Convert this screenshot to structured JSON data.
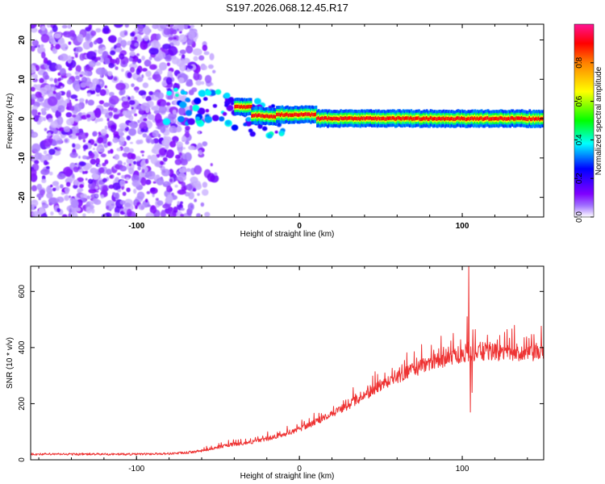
{
  "title": "S197.2026.068.12.45.R17",
  "chart_data": [
    {
      "type": "heatmap",
      "xlabel": "Height of straight line (km)",
      "ylabel": "Frequency (Hz)",
      "xlim": [
        -165,
        150
      ],
      "ylim": [
        -25,
        24
      ],
      "x_ticks": [
        -100,
        0,
        100
      ],
      "y_ticks": [
        20,
        10,
        0,
        -10,
        -20
      ],
      "colorbar": {
        "label": "Normalized spectral amplitude",
        "range": [
          0,
          1
        ],
        "ticks": [
          0.0,
          0.2,
          0.4,
          0.6,
          0.8
        ],
        "colors": [
          "#ffffff",
          "#7f00ff",
          "#0000ff",
          "#00ffff",
          "#00ff00",
          "#ffff00",
          "#ff0000",
          "#ff1493"
        ]
      },
      "features": [
        {
          "region": "x < -60 km",
          "description": "scattered low-amplitude noise across all frequencies"
        },
        {
          "region": "-80 to -10 km",
          "description": "clustered mid-amplitude blobs near 0-5 Hz"
        },
        {
          "region": "-10 to 150 km",
          "description": "strong narrow band near 0 Hz, amplitude ~0.9"
        }
      ]
    },
    {
      "type": "line",
      "xlabel": "Height of straight line (km)",
      "ylabel": "SNR (10 * v/v)",
      "xlim": [
        -165,
        150
      ],
      "ylim": [
        0,
        690
      ],
      "x_ticks": [
        -100,
        0,
        100
      ],
      "y_ticks": [
        0,
        200,
        400,
        600
      ],
      "series": [
        {
          "name": "SNR",
          "color": "#ee3333",
          "x": [
            -165,
            -140,
            -120,
            -100,
            -80,
            -70,
            -60,
            -50,
            -40,
            -30,
            -20,
            -10,
            0,
            10,
            20,
            30,
            40,
            50,
            60,
            70,
            80,
            90,
            100,
            110,
            120,
            130,
            140,
            150
          ],
          "values": [
            20,
            20,
            20,
            20,
            22,
            25,
            32,
            45,
            55,
            62,
            75,
            90,
            110,
            135,
            165,
            195,
            230,
            265,
            295,
            320,
            345,
            360,
            375,
            380,
            382,
            380,
            378,
            380
          ],
          "spikes": [
            {
              "x": 104,
              "value": 690
            },
            {
              "x": 105,
              "value": 170
            }
          ]
        }
      ]
    }
  ]
}
